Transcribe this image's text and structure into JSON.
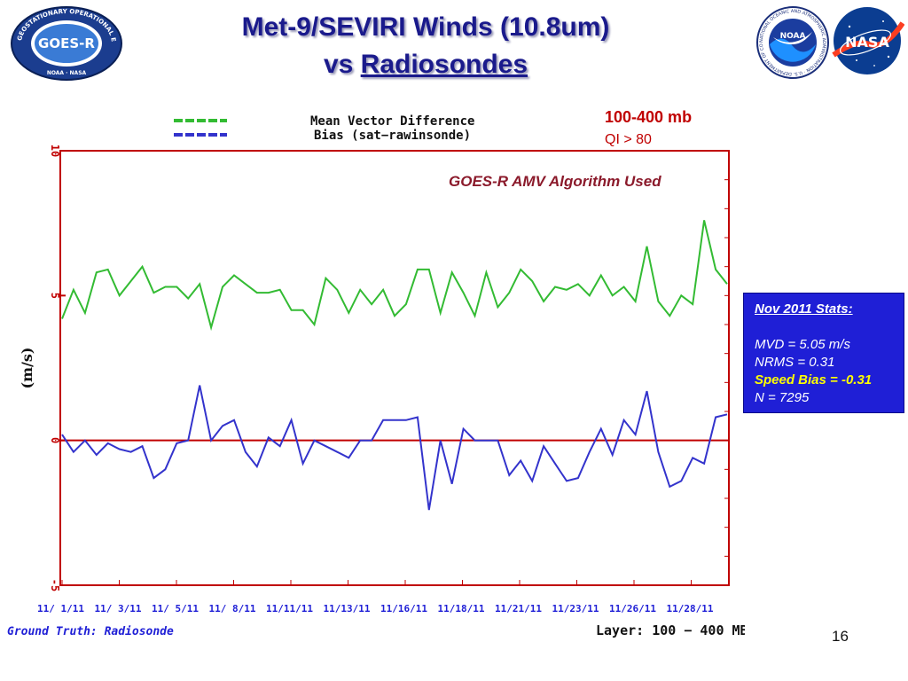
{
  "slide": {
    "title_line1": "Met-9/SEVIRI Winds (10.8um)",
    "title_line2_prefix": "vs ",
    "title_line2_underlined": "Radiosondes",
    "page_number": "16",
    "logos": [
      {
        "name": "GOES-R logo",
        "ring_text": "GEOSTATIONARY OPERATIONAL ENVIRONMENTAL SATELLITE R-SERIES",
        "center_text": "GOES-R",
        "bottom_text": "NOAA · NASA"
      },
      {
        "name": "NOAA logo",
        "center_text": "NOAA",
        "ring_text": "NATIONAL OCEANIC AND ATMOSPHERIC ADMINISTRATION · U.S. DEPARTMENT OF COMMERCE"
      },
      {
        "name": "NASA logo",
        "center_text": "NASA"
      }
    ],
    "colors": {
      "title": "#1a1a8c",
      "accent_red": "#c00000",
      "stats_box": "#1f1fd6",
      "speed_bias": "#ffff00",
      "algorithm_note": "#8b1a2b"
    }
  },
  "annotations": {
    "layer_range": "100-400 mb",
    "qi": "QI > 80",
    "algorithm_note": "GOES-R  AMV Algorithm Used",
    "ground_truth": "Ground Truth: Radiosonde",
    "layer_footer": "Layer: 100 − 400 MB"
  },
  "stats": {
    "heading": "Nov 2011 Stats:",
    "mvd": "MVD = 5.05 m/s",
    "nrms": "NRMS = 0.31",
    "speed_bias": "Speed Bias = -0.31",
    "n": "N = 7295"
  },
  "chart_data": {
    "type": "line",
    "ylabel": "(m/s)",
    "xlabel": "",
    "ylim": [
      -5,
      10
    ],
    "y_ticks": [
      "10",
      "5",
      "0",
      "-5"
    ],
    "x_tick_labels": [
      "11/ 1/11",
      "11/ 3/11",
      "11/ 5/11",
      "11/ 8/11",
      "11/11/11",
      "11/13/11",
      "11/16/11",
      "11/18/11",
      "11/21/11",
      "11/23/11",
      "11/26/11",
      "11/28/11"
    ],
    "x_tick_label_variant": [
      "11/ 1/11",
      "1/11",
      "3/11",
      "11/ 5/11",
      "11/ 8/11",
      "11/11/11",
      "11/13/11",
      "11/16/11",
      "11/18/11",
      "11/21/11",
      "11/23/11",
      "11/26/11",
      "11/28/11"
    ],
    "grid": false,
    "legend_position": "top",
    "zero_line_color": "#c00000",
    "series": [
      {
        "name": "Mean Vector Difference",
        "color": "#33bb33",
        "values": [
          4.2,
          5.2,
          4.4,
          5.8,
          5.9,
          5.0,
          5.5,
          6.0,
          5.1,
          5.3,
          5.3,
          4.9,
          5.4,
          3.9,
          5.3,
          5.7,
          5.4,
          5.1,
          5.1,
          5.2,
          4.5,
          4.5,
          4.0,
          5.6,
          5.2,
          4.4,
          5.2,
          4.7,
          5.2,
          4.3,
          4.7,
          5.9,
          5.9,
          4.4,
          5.8,
          5.1,
          4.3,
          5.8,
          4.6,
          5.1,
          5.9,
          5.5,
          4.8,
          5.3,
          5.2,
          5.4,
          5.0,
          5.7,
          5.0,
          5.3,
          4.8,
          6.7,
          4.8,
          4.3,
          5.0,
          4.7,
          7.6,
          5.9,
          5.4
        ]
      },
      {
        "name": "Bias (sat−rawinsonde)",
        "color": "#3333cc",
        "values": [
          0.2,
          -0.4,
          0.0,
          -0.5,
          -0.1,
          -0.3,
          -0.4,
          -0.2,
          -1.3,
          -1.0,
          -0.1,
          0.0,
          1.9,
          0.0,
          0.5,
          0.7,
          -0.4,
          -0.9,
          0.1,
          -0.2,
          0.7,
          -0.8,
          0.0,
          -0.2,
          -0.4,
          -0.6,
          0.0,
          0.0,
          0.7,
          0.7,
          0.7,
          0.8,
          -2.4,
          0.0,
          -1.5,
          0.4,
          0.0,
          0.0,
          0.0,
          -1.2,
          -0.7,
          -1.4,
          -0.2,
          -0.8,
          -1.4,
          -1.3,
          -0.4,
          0.4,
          -0.5,
          0.7,
          0.2,
          1.7,
          -0.4,
          -1.6,
          -1.4,
          -0.6,
          -0.8,
          0.8,
          0.9
        ]
      }
    ]
  }
}
